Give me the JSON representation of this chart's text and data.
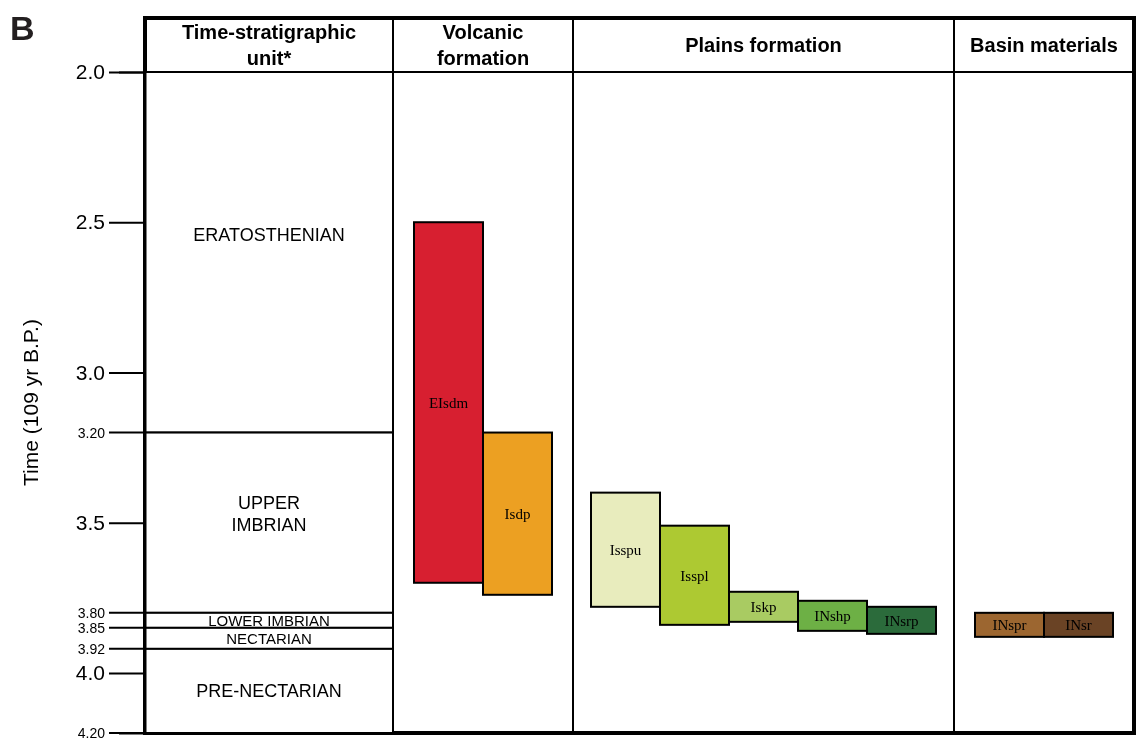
{
  "chart_data": {
    "type": "bar",
    "title": "B",
    "ylabel": "Time (109 yr B.P.)",
    "categories": [
      "Time-stratigraphic unit*",
      "Volcanic formation",
      "Plains formation",
      "Basin materials"
    ],
    "ylim": [
      4.2,
      2.0
    ],
    "yticks": [
      {
        "value": 2,
        "label": "2.0"
      },
      {
        "value": 2.5,
        "label": "2.5"
      },
      {
        "value": 3,
        "label": "3.0"
      },
      3.5,
      {
        "value": 4,
        "label": "4.0"
      }
    ],
    "ref_lines": [
      {
        "axis": "y",
        "value": 4.2,
        "label": "4.20"
      },
      {
        "axis": "y",
        "value": 3.2,
        "label": "3.20"
      },
      {
        "axis": "y",
        "value": 3.8,
        "label": "3.80"
      },
      {
        "axis": "y",
        "value": 3.85,
        "label": "3.85"
      },
      {
        "axis": "y",
        "value": 3.92,
        "label": "3.92"
      }
    ],
    "series": [
      {
        "name": "ERATOSTHENIAN",
        "color": "#ffffff",
        "values": [
          1.2,
          null,
          null,
          null
        ],
        "base": [
          2.0,
          null,
          null,
          null
        ]
      },
      {
        "name": "UPPER\nIMBRIAN",
        "color": "#ffffff",
        "values": [
          0.6,
          null,
          null,
          null
        ],
        "base": [
          3.2,
          null,
          null,
          null
        ]
      },
      {
        "name": "LOWER IMBRIAN",
        "color": "#ffffff",
        "values": [
          0.05,
          null,
          null,
          null
        ],
        "base": [
          3.8,
          null,
          null,
          null
        ]
      },
      {
        "name": "NECTARIAN",
        "color": "#ffffff",
        "values": [
          0.07,
          null,
          null,
          null
        ],
        "base": [
          3.85,
          null,
          null,
          null
        ]
      },
      {
        "name": "PRE-NECTARIAN",
        "color": "#ffffff",
        "values": [
          0.28,
          null,
          null,
          null
        ],
        "base": [
          3.92,
          null,
          null,
          null
        ]
      },
      {
        "name": "EIsdm",
        "color": "#d71f30",
        "values": [
          null,
          1.2,
          null,
          null
        ],
        "base": [
          null,
          2.5,
          null,
          null
        ]
      },
      {
        "name": "Isdp",
        "color": "#eca022",
        "values": [
          null,
          0.54,
          null,
          null
        ],
        "base": [
          null,
          3.2,
          null,
          null
        ]
      },
      {
        "name": "Isspu",
        "color": "#e8ecbd",
        "values": [
          null,
          null,
          0.38,
          null
        ],
        "base": [
          null,
          null,
          3.4,
          null
        ]
      },
      {
        "name": "Isspl",
        "color": "#adc932",
        "values": [
          null,
          null,
          0.33,
          null
        ],
        "base": [
          null,
          null,
          3.51,
          null
        ]
      },
      {
        "name": "Iskp",
        "color": "#a9cb62",
        "values": [
          null,
          null,
          0.1,
          null
        ],
        "base": [
          null,
          null,
          3.73,
          null
        ]
      },
      {
        "name": "INshp",
        "color": "#6db045",
        "values": [
          null,
          null,
          0.1,
          null
        ],
        "base": [
          null,
          null,
          3.76,
          null
        ]
      },
      {
        "name": "INsrp",
        "color": "#2b6b3b",
        "values": [
          null,
          null,
          0.09,
          null
        ],
        "base": [
          null,
          null,
          3.78,
          null
        ]
      },
      {
        "name": "INspr",
        "color": "#9c6630",
        "values": [
          null,
          null,
          null,
          0.08
        ],
        "base": [
          null,
          null,
          null,
          3.8
        ]
      },
      {
        "name": "INsr",
        "color": "#6a4325",
        "values": [
          null,
          null,
          null,
          0.08
        ],
        "base": [
          null,
          null,
          null,
          3.8
        ]
      }
    ]
  }
}
